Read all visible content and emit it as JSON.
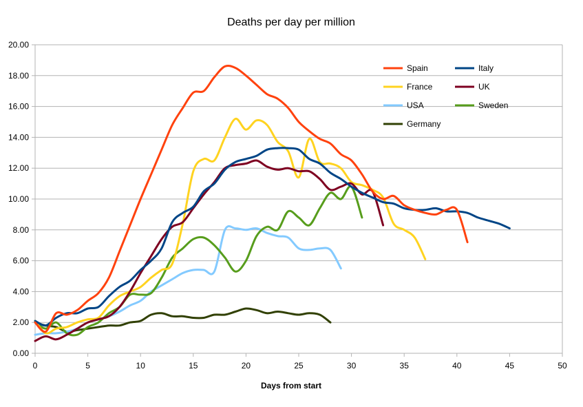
{
  "chart_data": {
    "type": "line",
    "title": "Deaths per day per million",
    "xlabel": "Days from start",
    "ylabel": "",
    "xlim": [
      0,
      50
    ],
    "ylim": [
      0,
      20
    ],
    "x_ticks": [
      0,
      5,
      10,
      15,
      20,
      25,
      30,
      35,
      40,
      45,
      50
    ],
    "y_ticks": [
      "0.00",
      "2.00",
      "4.00",
      "6.00",
      "8.00",
      "10.00",
      "12.00",
      "14.00",
      "16.00",
      "18.00",
      "20.00"
    ],
    "grid": "horizontal",
    "legend_position": "top-right",
    "series": [
      {
        "name": "Spain",
        "color": "#ff420e",
        "x": [
          0,
          1,
          2,
          3,
          4,
          5,
          6,
          7,
          8,
          9,
          10,
          11,
          12,
          13,
          14,
          15,
          16,
          17,
          18,
          19,
          20,
          21,
          22,
          23,
          24,
          25,
          26,
          27,
          28,
          29,
          30,
          31,
          32,
          33,
          34,
          35,
          36,
          37,
          38,
          39,
          40,
          41
        ],
        "y": [
          2.0,
          1.4,
          2.6,
          2.5,
          2.8,
          3.4,
          3.9,
          4.9,
          6.6,
          8.3,
          10.0,
          11.6,
          13.2,
          14.8,
          15.9,
          16.9,
          17.0,
          17.9,
          18.6,
          18.5,
          18.0,
          17.4,
          16.8,
          16.5,
          15.9,
          15.0,
          14.4,
          13.9,
          13.6,
          12.9,
          12.5,
          11.6,
          10.5,
          10.0,
          10.2,
          9.6,
          9.3,
          9.1,
          9.0,
          9.3,
          9.3,
          7.2
        ]
      },
      {
        "name": "France",
        "color": "#ffd320",
        "x": [
          0,
          1,
          2,
          3,
          4,
          5,
          6,
          7,
          8,
          9,
          10,
          11,
          12,
          13,
          14,
          15,
          16,
          17,
          18,
          19,
          20,
          21,
          22,
          23,
          24,
          25,
          26,
          27,
          28,
          29,
          30,
          31,
          32,
          33,
          34,
          35,
          36,
          37
        ],
        "y": [
          2.1,
          1.3,
          1.6,
          1.7,
          2.0,
          2.2,
          2.3,
          3.1,
          3.7,
          4.0,
          4.3,
          4.9,
          5.4,
          5.8,
          8.4,
          11.8,
          12.6,
          12.5,
          14.0,
          15.2,
          14.5,
          15.1,
          14.8,
          13.7,
          13.1,
          11.4,
          13.9,
          12.4,
          12.3,
          12.0,
          11.1,
          10.9,
          10.6,
          10.1,
          8.4,
          8.0,
          7.5,
          6.1
        ]
      },
      {
        "name": "USA",
        "color": "#83caff",
        "x": [
          0,
          1,
          2,
          3,
          4,
          5,
          6,
          7,
          8,
          9,
          10,
          11,
          12,
          13,
          14,
          15,
          16,
          17,
          18,
          19,
          20,
          21,
          22,
          23,
          24,
          25,
          26,
          27,
          28,
          29
        ],
        "y": [
          1.2,
          1.3,
          1.3,
          1.4,
          1.6,
          2.0,
          2.2,
          2.4,
          2.7,
          3.1,
          3.4,
          4.0,
          4.4,
          4.8,
          5.2,
          5.4,
          5.4,
          5.3,
          8.0,
          8.1,
          8.0,
          8.1,
          7.8,
          7.6,
          7.5,
          6.8,
          6.7,
          6.8,
          6.7,
          5.5
        ]
      },
      {
        "name": "Germany",
        "color": "#314004",
        "x": [
          0,
          1,
          2,
          3,
          4,
          5,
          6,
          7,
          8,
          9,
          10,
          11,
          12,
          13,
          14,
          15,
          16,
          17,
          18,
          19,
          20,
          21,
          22,
          23,
          24,
          25,
          26,
          27,
          28
        ],
        "y": [
          2.0,
          1.8,
          1.7,
          1.4,
          1.5,
          1.6,
          1.7,
          1.8,
          1.8,
          2.0,
          2.1,
          2.5,
          2.6,
          2.4,
          2.4,
          2.3,
          2.3,
          2.5,
          2.5,
          2.7,
          2.9,
          2.8,
          2.6,
          2.7,
          2.6,
          2.5,
          2.6,
          2.5,
          2.0
        ]
      },
      {
        "name": "Italy",
        "color": "#004586",
        "x": [
          0,
          1,
          2,
          3,
          4,
          5,
          6,
          7,
          8,
          9,
          10,
          11,
          12,
          13,
          14,
          15,
          16,
          17,
          18,
          19,
          20,
          21,
          22,
          23,
          24,
          25,
          26,
          27,
          28,
          29,
          30,
          31,
          32,
          33,
          34,
          35,
          36,
          37,
          38,
          39,
          40,
          41,
          42,
          43,
          44,
          45
        ],
        "y": [
          2.1,
          1.8,
          2.3,
          2.6,
          2.6,
          2.9,
          3.0,
          3.7,
          4.3,
          4.7,
          5.4,
          6.0,
          6.8,
          8.5,
          9.1,
          9.5,
          10.5,
          11.0,
          11.9,
          12.4,
          12.6,
          12.8,
          13.2,
          13.3,
          13.3,
          13.2,
          12.6,
          12.3,
          11.7,
          11.3,
          10.8,
          10.4,
          10.1,
          9.8,
          9.7,
          9.4,
          9.3,
          9.3,
          9.4,
          9.2,
          9.2,
          9.1,
          8.8,
          8.6,
          8.4,
          8.1
        ]
      },
      {
        "name": "UK",
        "color": "#7e0021",
        "x": [
          0,
          1,
          2,
          3,
          4,
          5,
          6,
          7,
          8,
          9,
          10,
          11,
          12,
          13,
          14,
          15,
          16,
          17,
          18,
          19,
          20,
          21,
          22,
          23,
          24,
          25,
          26,
          27,
          28,
          29,
          30,
          31,
          32,
          33
        ],
        "y": [
          0.8,
          1.1,
          0.9,
          1.2,
          1.6,
          2.0,
          2.2,
          2.4,
          3.0,
          4.0,
          5.2,
          6.3,
          7.4,
          8.2,
          8.5,
          9.4,
          10.3,
          11.1,
          12.0,
          12.2,
          12.3,
          12.5,
          12.1,
          11.9,
          12.0,
          11.8,
          11.8,
          11.3,
          10.6,
          10.8,
          11.0,
          10.3,
          10.5,
          8.3
        ]
      },
      {
        "name": "Sweden",
        "color": "#579d1c",
        "x": [
          0,
          1,
          2,
          3,
          4,
          5,
          6,
          7,
          8,
          9,
          10,
          11,
          12,
          13,
          14,
          15,
          16,
          17,
          18,
          19,
          20,
          21,
          22,
          23,
          24,
          25,
          26,
          27,
          28,
          29,
          30,
          31
        ],
        "y": [
          2.0,
          1.6,
          2.0,
          1.3,
          1.2,
          1.7,
          2.0,
          2.6,
          3.0,
          3.8,
          3.8,
          3.9,
          4.9,
          6.2,
          6.8,
          7.4,
          7.5,
          7.0,
          6.2,
          5.3,
          6.0,
          7.6,
          8.2,
          8.0,
          9.2,
          8.8,
          8.3,
          9.4,
          10.4,
          10.0,
          10.8,
          8.8
        ]
      }
    ]
  }
}
